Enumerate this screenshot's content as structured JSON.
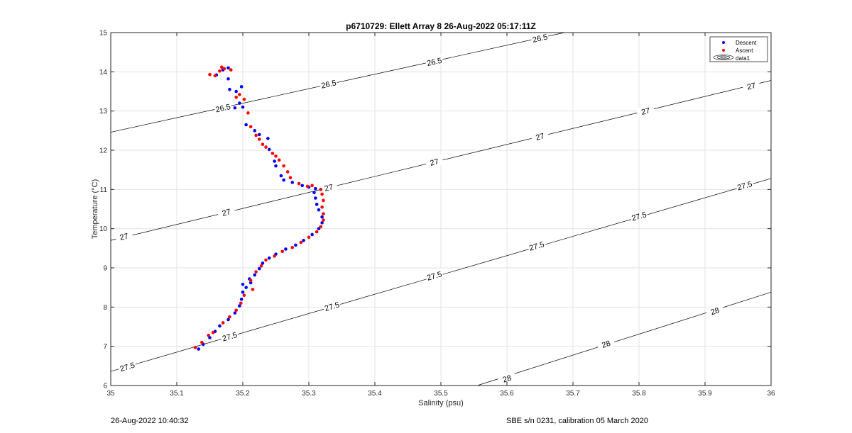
{
  "chart_data": {
    "type": "scatter",
    "title": "p6710729: Ellett Array 8 26-Aug-2022 05:17:11Z",
    "xlabel": "Salinity (psu)",
    "ylabel": "Temperature (°C)",
    "xlim": [
      35,
      36
    ],
    "ylim": [
      6,
      15
    ],
    "x_ticks": [
      "35",
      "35.1",
      "35.2",
      "35.3",
      "35.4",
      "35.5",
      "35.6",
      "35.7",
      "35.8",
      "35.9",
      "36"
    ],
    "y_ticks": [
      "6",
      "7",
      "8",
      "9",
      "10",
      "11",
      "12",
      "13",
      "14",
      "15"
    ],
    "grid": true,
    "legend": {
      "position": "top-right",
      "entries": [
        {
          "label": "Descent",
          "color": "#0000ff",
          "marker": "dot"
        },
        {
          "label": "Ascent",
          "color": "#ff0000",
          "marker": "dot"
        },
        {
          "label": "data1",
          "color": "#000000",
          "marker": "contour"
        }
      ]
    },
    "series": [
      {
        "name": "Descent",
        "color": "#0000ff",
        "points": [
          [
            35.133,
            6.93
          ],
          [
            35.14,
            7.05
          ],
          [
            35.15,
            7.22
          ],
          [
            35.158,
            7.38
          ],
          [
            35.165,
            7.52
          ],
          [
            35.178,
            7.68
          ],
          [
            35.188,
            7.85
          ],
          [
            35.195,
            8.03
          ],
          [
            35.198,
            8.2
          ],
          [
            35.2,
            8.38
          ],
          [
            35.205,
            8.5
          ],
          [
            35.2,
            8.58
          ],
          [
            35.212,
            8.62
          ],
          [
            35.21,
            8.72
          ],
          [
            35.218,
            8.82
          ],
          [
            35.225,
            8.98
          ],
          [
            35.23,
            9.12
          ],
          [
            35.24,
            9.25
          ],
          [
            35.25,
            9.35
          ],
          [
            35.265,
            9.48
          ],
          [
            35.28,
            9.58
          ],
          [
            35.292,
            9.7
          ],
          [
            35.305,
            9.85
          ],
          [
            35.315,
            10.0
          ],
          [
            35.32,
            10.15
          ],
          [
            35.32,
            10.3
          ],
          [
            35.315,
            10.48
          ],
          [
            35.312,
            10.62
          ],
          [
            35.31,
            10.78
          ],
          [
            35.308,
            10.92
          ],
          [
            35.31,
            11.02
          ],
          [
            35.3,
            11.06
          ],
          [
            35.29,
            11.1
          ],
          [
            35.275,
            11.18
          ],
          [
            35.262,
            11.24
          ],
          [
            35.258,
            11.35
          ],
          [
            35.25,
            11.6
          ],
          [
            35.248,
            11.72
          ],
          [
            35.24,
            12.02
          ],
          [
            35.238,
            12.3
          ],
          [
            35.225,
            12.4
          ],
          [
            35.218,
            12.5
          ],
          [
            35.205,
            12.65
          ],
          [
            35.2,
            13.1
          ],
          [
            35.195,
            13.2
          ],
          [
            35.19,
            13.5
          ],
          [
            35.188,
            13.08
          ],
          [
            35.198,
            13.62
          ],
          [
            35.178,
            13.82
          ],
          [
            35.18,
            13.55
          ],
          [
            35.16,
            13.92
          ],
          [
            35.17,
            14.05
          ],
          [
            35.178,
            14.1
          ]
        ]
      },
      {
        "name": "Ascent",
        "color": "#ff0000",
        "points": [
          [
            35.128,
            6.97
          ],
          [
            35.138,
            7.1
          ],
          [
            35.148,
            7.28
          ],
          [
            35.155,
            7.35
          ],
          [
            35.17,
            7.6
          ],
          [
            35.18,
            7.75
          ],
          [
            35.19,
            7.92
          ],
          [
            35.197,
            8.1
          ],
          [
            35.202,
            8.3
          ],
          [
            35.215,
            8.45
          ],
          [
            35.212,
            8.68
          ],
          [
            35.22,
            8.9
          ],
          [
            35.228,
            9.05
          ],
          [
            35.235,
            9.2
          ],
          [
            35.248,
            9.3
          ],
          [
            35.26,
            9.42
          ],
          [
            35.275,
            9.52
          ],
          [
            35.288,
            9.65
          ],
          [
            35.3,
            9.78
          ],
          [
            35.312,
            9.92
          ],
          [
            35.318,
            10.05
          ],
          [
            35.322,
            10.22
          ],
          [
            35.322,
            10.38
          ],
          [
            35.32,
            10.55
          ],
          [
            35.322,
            10.72
          ],
          [
            35.32,
            10.88
          ],
          [
            35.318,
            11.0
          ],
          [
            35.305,
            11.1
          ],
          [
            35.298,
            11.08
          ],
          [
            35.285,
            11.15
          ],
          [
            35.272,
            11.3
          ],
          [
            35.268,
            11.45
          ],
          [
            35.262,
            11.6
          ],
          [
            35.255,
            11.75
          ],
          [
            35.25,
            11.85
          ],
          [
            35.245,
            11.92
          ],
          [
            35.235,
            12.08
          ],
          [
            35.23,
            12.15
          ],
          [
            35.225,
            12.28
          ],
          [
            35.22,
            12.38
          ],
          [
            35.212,
            12.6
          ],
          [
            35.208,
            12.95
          ],
          [
            35.202,
            13.3
          ],
          [
            35.195,
            13.42
          ],
          [
            35.19,
            13.35
          ],
          [
            35.15,
            13.93
          ],
          [
            35.158,
            13.9
          ],
          [
            35.165,
            14.02
          ],
          [
            35.172,
            14.08
          ],
          [
            35.182,
            14.05
          ],
          [
            35.168,
            14.12
          ]
        ]
      }
    ],
    "contours": [
      {
        "level": "26.5",
        "x0": 35.0,
        "y0": 12.46,
        "x1": 35.687,
        "y1": 15.0,
        "labels": [
          [
            35.17,
            13.08
          ],
          [
            35.33,
            13.69
          ],
          [
            35.49,
            14.26
          ],
          [
            35.65,
            14.86
          ]
        ]
      },
      {
        "level": "27",
        "x0": 35.0,
        "y0": 9.7,
        "x1": 36.0,
        "y1": 13.78,
        "labels": [
          [
            35.02,
            9.8
          ],
          [
            35.175,
            10.42
          ],
          [
            35.33,
            11.05
          ],
          [
            35.49,
            11.7
          ],
          [
            35.65,
            12.35
          ],
          [
            35.81,
            13.0
          ],
          [
            35.97,
            13.64
          ]
        ]
      },
      {
        "level": "27.5",
        "x0": 35.0,
        "y0": 6.36,
        "x1": 36.0,
        "y1": 11.28,
        "labels": [
          [
            35.025,
            6.48
          ],
          [
            35.18,
            7.25
          ],
          [
            35.335,
            8.02
          ],
          [
            35.49,
            8.8
          ],
          [
            35.645,
            9.56
          ],
          [
            35.8,
            10.32
          ],
          [
            35.96,
            11.1
          ]
        ]
      },
      {
        "level": "28",
        "x0": 35.555,
        "y0": 6.0,
        "x1": 36.0,
        "y1": 8.38,
        "labels": [
          [
            35.6,
            6.18
          ],
          [
            35.75,
            7.06
          ],
          [
            35.915,
            7.9
          ]
        ]
      }
    ]
  },
  "footer": {
    "left": "26-Aug-2022 10:40:32",
    "right": "SBE s/n 0231, calibration 05 March 2020"
  }
}
